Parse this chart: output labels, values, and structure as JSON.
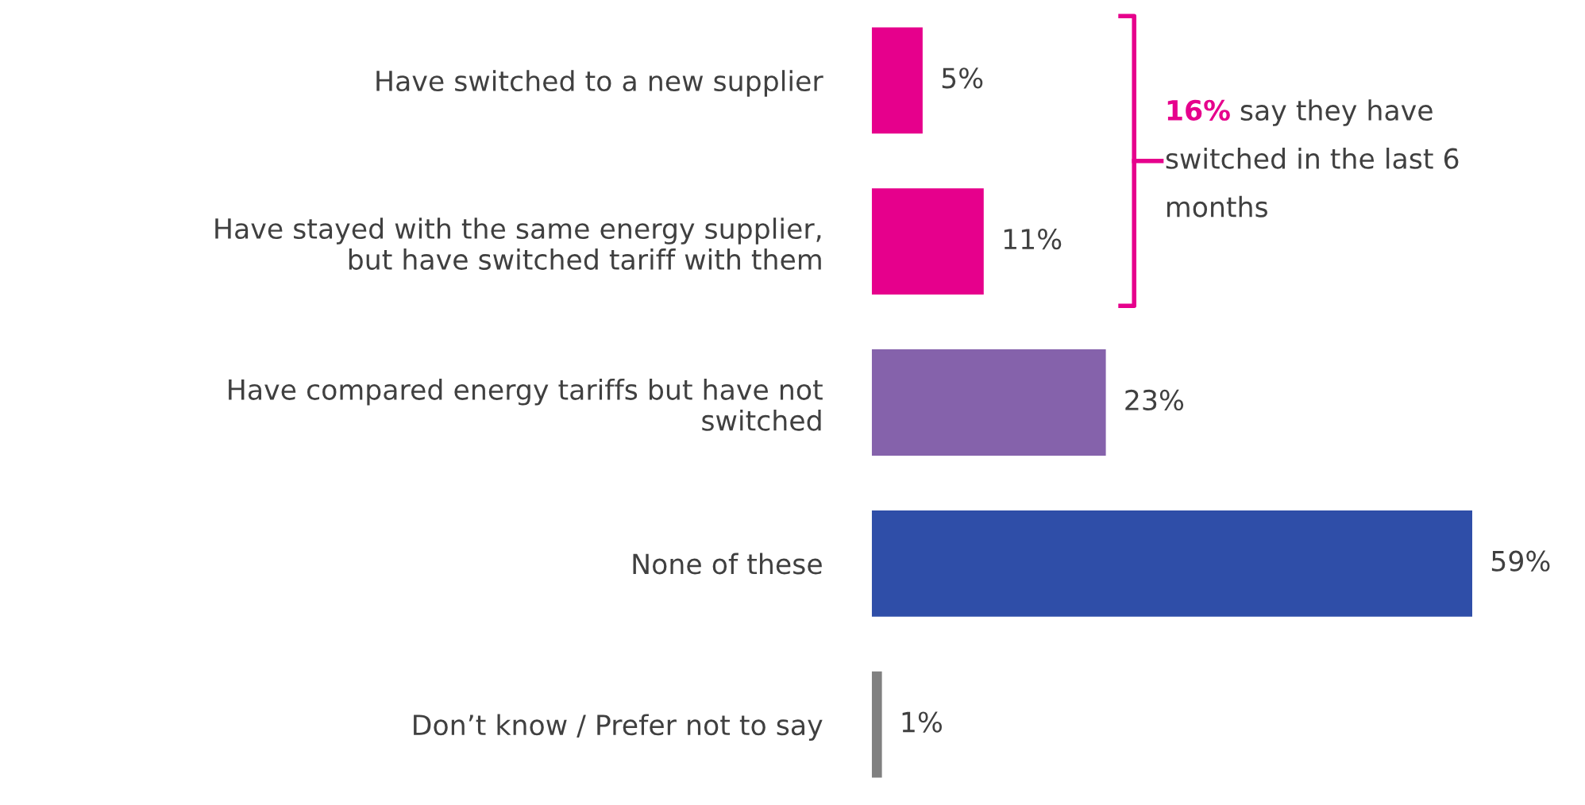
{
  "chart_data": {
    "type": "bar",
    "orientation": "horizontal",
    "categories": [
      "Have switched to a new supplier",
      "Have stayed with the same energy supplier, but have switched tariff with them",
      "Have compared energy tariffs but have not switched",
      "None of these",
      "Don’t know / Prefer not to say"
    ],
    "values": [
      5,
      11,
      23,
      59,
      1
    ],
    "colors": [
      "#e6008c",
      "#e6008c",
      "#8562ab",
      "#2f4ea8",
      "#808080"
    ],
    "value_labels": [
      "5%",
      "11%",
      "23%",
      "59%",
      "1%"
    ],
    "tick_labels": "y",
    "grid": false,
    "legend": false,
    "annotations": [
      "16% say they have switched in the last 6 months"
    ]
  }
}
